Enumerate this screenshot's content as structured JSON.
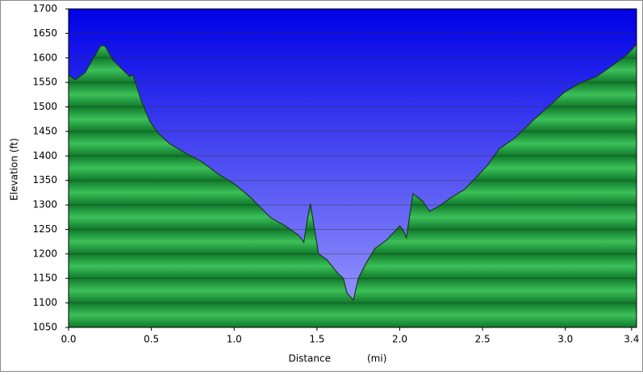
{
  "chart_data": {
    "type": "area",
    "x_label": "Distance",
    "x_unit": "(mi)",
    "y_label": "Elevation (ft)",
    "x": [
      0,
      0.04,
      0.1,
      0.15,
      0.195,
      0.22,
      0.27,
      0.32,
      0.37,
      0.39,
      0.4,
      0.44,
      0.49,
      0.54,
      0.61,
      0.71,
      0.8,
      0.9,
      1.0,
      1.1,
      1.22,
      1.31,
      1.39,
      1.42,
      1.44,
      1.46,
      1.49,
      1.51,
      1.56,
      1.61,
      1.63,
      1.66,
      1.68,
      1.72,
      1.75,
      1.8,
      1.85,
      1.92,
      2.0,
      2.02,
      2.04,
      2.08,
      2.11,
      2.14,
      2.18,
      2.24,
      2.31,
      2.39,
      2.46,
      2.53,
      2.6,
      2.7,
      2.8,
      2.9,
      2.99,
      3.09,
      3.19,
      3.29,
      3.36,
      3.4,
      3.43
    ],
    "values": [
      1565,
      1555,
      1570,
      1600,
      1625,
      1624,
      1595,
      1578,
      1562,
      1565,
      1553,
      1512,
      1471,
      1447,
      1425,
      1405,
      1389,
      1364,
      1343,
      1315,
      1274,
      1257,
      1238,
      1224,
      1266,
      1303,
      1241,
      1200,
      1188,
      1167,
      1159,
      1150,
      1121,
      1106,
      1150,
      1183,
      1211,
      1228,
      1257,
      1249,
      1233,
      1323,
      1315,
      1307,
      1287,
      1298,
      1315,
      1331,
      1356,
      1381,
      1414,
      1438,
      1471,
      1501,
      1529,
      1549,
      1562,
      1586,
      1603,
      1616,
      1628
    ],
    "xlim": [
      0,
      3.43
    ],
    "ylim": [
      1050,
      1700
    ],
    "xticks": [
      {
        "value": 0,
        "label": "0.0"
      },
      0.5,
      {
        "value": 1,
        "label": "1.0"
      },
      1.5,
      {
        "value": 2,
        "label": "2.0"
      },
      2.5,
      {
        "value": 3,
        "label": "3.0"
      },
      3.4
    ],
    "yticks": [
      1050,
      1100,
      1150,
      1200,
      1250,
      1300,
      1350,
      1400,
      1450,
      1500,
      1550,
      1600,
      1650,
      1700
    ],
    "grid": true,
    "color": "#1e9a3c"
  }
}
